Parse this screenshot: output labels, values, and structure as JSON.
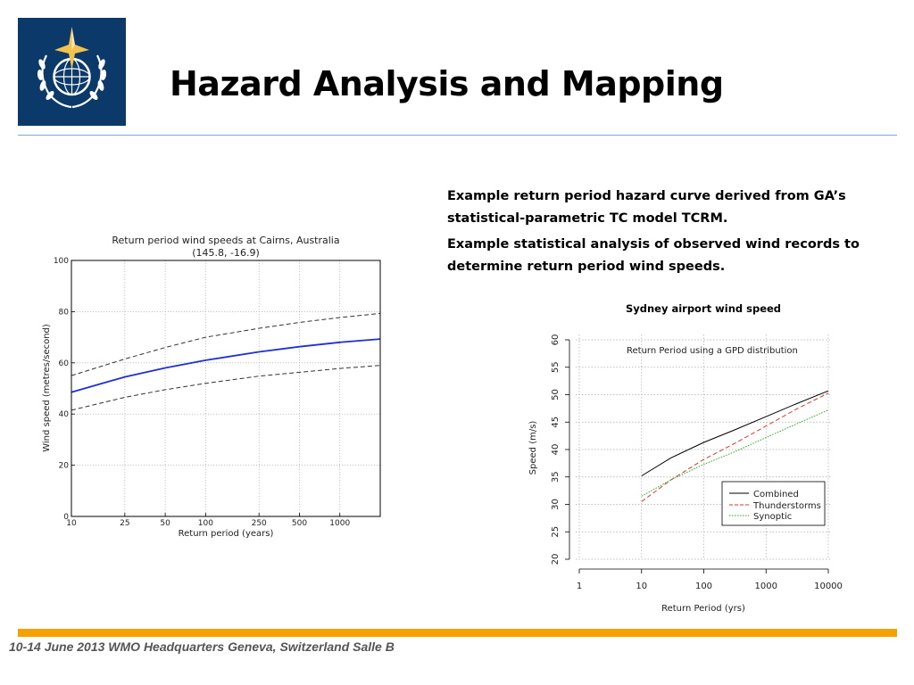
{
  "slide": {
    "title": "Hazard Analysis and Mapping",
    "bullets": [
      "Example return period hazard curve derived from GA’s statistical-parametric TC model TCRM.",
      "Example statistical analysis of observed wind records to determine return period wind speeds."
    ],
    "footer": "10-14 June 2013 WMO Headquarters Geneva, Switzerland Salle B"
  },
  "colors": {
    "logo_bg": "#0b3a6a",
    "accent_rule": "#7aa8cf",
    "footer_bar": "#f5a200"
  },
  "chart_data": [
    {
      "type": "line",
      "title": "Return period wind speeds at Cairns, Australia",
      "subtitle": "(145.8, -16.9)",
      "xlabel": "Return period (years)",
      "ylabel": "Wind speed (metres/second)",
      "xscale": "log",
      "xlim": [
        10,
        2000
      ],
      "ylim": [
        0,
        100
      ],
      "xticks": [
        10,
        25,
        50,
        100,
        250,
        500,
        1000
      ],
      "xtick_labels": [
        "10",
        "25",
        "50",
        "100",
        "250",
        "500",
        "1000"
      ],
      "yticks": [
        0,
        20,
        40,
        60,
        80,
        100
      ],
      "ytick_labels": [
        "0",
        "20",
        "40",
        "60",
        "80",
        "100"
      ],
      "grid": true,
      "x": [
        10,
        25,
        50,
        100,
        250,
        500,
        1000,
        2000
      ],
      "series": [
        {
          "style": "solid",
          "color": "#1f2fd6",
          "values": [
            48.5,
            54.5,
            58,
            61,
            64.3,
            66.3,
            68,
            69.3
          ]
        },
        {
          "style": "dashed",
          "color": "#333333",
          "values": [
            55,
            61.5,
            66,
            70,
            73.5,
            75.8,
            77.7,
            79.3
          ]
        },
        {
          "style": "dashed",
          "color": "#333333",
          "values": [
            41.5,
            46.5,
            49.5,
            52,
            54.8,
            56.3,
            57.8,
            59
          ]
        }
      ]
    },
    {
      "type": "line",
      "title": "Sydney airport wind speed",
      "annotation": "Return Period using a GPD distribution",
      "xlabel": "Return Period (yrs)",
      "ylabel": "Speed (m/s)",
      "xscale": "log",
      "xlim": [
        1,
        10000
      ],
      "ylim": [
        20,
        60
      ],
      "xticks": [
        1,
        10,
        100,
        1000,
        10000
      ],
      "xtick_labels": [
        "1",
        "10",
        "100",
        "1000",
        "10000"
      ],
      "yticks": [
        20,
        25,
        30,
        35,
        40,
        45,
        50,
        55,
        60
      ],
      "ytick_labels": [
        "20",
        "25",
        "30",
        "35",
        "40",
        "45",
        "50",
        "55",
        "60"
      ],
      "grid": true,
      "legend": "lower-right",
      "x": [
        10,
        30,
        100,
        300,
        1000,
        3000,
        10000
      ],
      "series": [
        {
          "name": "Combined",
          "style": "solid",
          "color": "#000000",
          "values": [
            35.2,
            38.5,
            41.3,
            43.5,
            46.0,
            48.3,
            50.7
          ]
        },
        {
          "name": "Thunderstorms",
          "style": "dashed",
          "color": "#e8312d",
          "values": [
            30.5,
            34.5,
            38.2,
            41.0,
            44.3,
            47.3,
            50.3
          ]
        },
        {
          "name": "Synoptic",
          "style": "dotted",
          "color": "#1bb31b",
          "values": [
            31.5,
            34.5,
            37.3,
            39.5,
            42.2,
            44.6,
            47.2
          ]
        }
      ]
    }
  ]
}
